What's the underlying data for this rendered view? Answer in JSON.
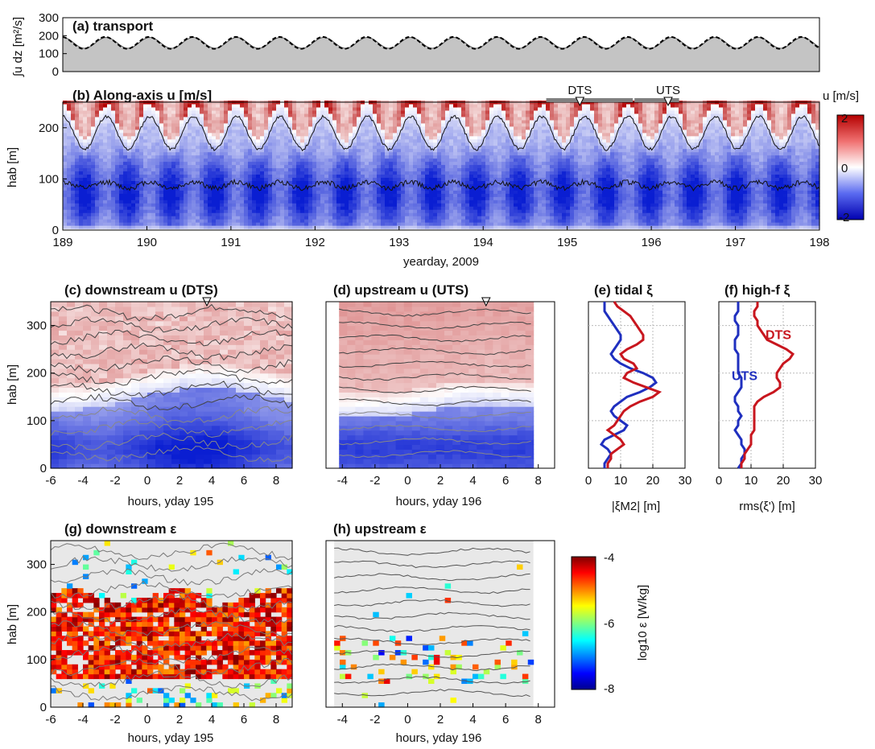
{
  "colors": {
    "blue_strong": "#0a1fd0",
    "red_strong": "#b40000",
    "white": "#ffffff",
    "transport_fill": "#c4c4c4",
    "contour": "#333333",
    "utS_line": "#1f2fbf",
    "dts_line": "#c8161e",
    "nan_gray": "#e8e8e8"
  },
  "chart_data": [
    {
      "id": "a",
      "type": "area",
      "title": "(a) transport",
      "ylabel": "∫u dz [m²/s]",
      "ylim": [
        0,
        300
      ],
      "yticks": [
        "0",
        "100",
        "200",
        "300"
      ],
      "xlim": [
        189,
        198
      ],
      "series": [
        {
          "style": "filled",
          "mean": 160,
          "amplitude": 30,
          "period_days": 0.5175
        },
        {
          "style": "dashed",
          "mean": 160,
          "amplitude": 33,
          "period_days": 0.5175
        }
      ]
    },
    {
      "id": "b",
      "type": "heatmap",
      "title": "(b) Along-axis u [m/s]",
      "xlabel": "yearday, 2009",
      "ylabel": "hab [m]",
      "xlim": [
        189,
        198
      ],
      "ylim": [
        0,
        250
      ],
      "xticks": [
        "189",
        "190",
        "191",
        "192",
        "193",
        "194",
        "195",
        "196",
        "197",
        "198"
      ],
      "yticks": [
        "0",
        "100",
        "200"
      ],
      "colorbar": {
        "label": "u [m/s]",
        "ticks": [
          "2",
          "0",
          "-2"
        ],
        "range": [
          -2,
          2
        ]
      },
      "markers": [
        {
          "label": "DTS",
          "start": 194.75,
          "end": 195.78,
          "center": 195.15
        },
        {
          "label": "UTS",
          "start": 195.8,
          "end": 196.33,
          "center": 196.2
        }
      ],
      "contours": [
        {
          "mean": 190,
          "amplitude": 32
        },
        {
          "mean": 88,
          "amplitude": 6
        }
      ]
    },
    {
      "id": "c",
      "type": "heatmap",
      "title": "(c) downstream u (DTS)",
      "xlabel": "hours, yday 195",
      "ylabel": "hab [m]",
      "xlim": [
        -6,
        9
      ],
      "ylim": [
        0,
        350
      ],
      "xticks": [
        "-6",
        "-4",
        "-2",
        "0",
        "2",
        "4",
        "6",
        "8"
      ],
      "yticks": [
        "0",
        "100",
        "200",
        "300"
      ],
      "marker_hour": 3.7
    },
    {
      "id": "d",
      "type": "heatmap",
      "title": "(d) upstream u (UTS)",
      "xlabel": "hours, yday 196",
      "xlim": [
        -5,
        9
      ],
      "ylim": [
        0,
        350
      ],
      "xticks": [
        "-4",
        "-2",
        "0",
        "2",
        "4",
        "6",
        "8"
      ],
      "data_range_hours": [
        -4.2,
        7.7
      ],
      "marker_hour": 4.8
    },
    {
      "id": "e",
      "type": "line",
      "title": "(e) tidal ξ",
      "xlabel": "|ξM2| [m]",
      "xlim": [
        0,
        30
      ],
      "ylim": [
        0,
        350
      ],
      "xticks": [
        "0",
        "10",
        "20",
        "30"
      ],
      "series": [
        {
          "name": "UTS",
          "x": [
            5,
            5,
            5,
            6,
            7,
            8,
            9,
            10,
            10,
            9,
            8,
            7,
            8,
            10,
            13,
            17,
            20,
            21,
            19,
            16,
            12,
            10,
            8,
            7,
            8,
            10,
            12,
            11,
            8,
            5,
            4,
            6,
            7,
            6,
            5,
            5
          ],
          "y": [
            350,
            340,
            330,
            320,
            310,
            300,
            290,
            280,
            270,
            260,
            250,
            240,
            230,
            220,
            210,
            200,
            190,
            180,
            170,
            160,
            150,
            140,
            130,
            120,
            110,
            100,
            90,
            80,
            70,
            60,
            50,
            40,
            30,
            20,
            10,
            0
          ]
        },
        {
          "name": "DTS",
          "x": [
            8,
            9,
            11,
            13,
            14,
            15,
            16,
            17,
            17,
            15,
            12,
            10,
            11,
            14,
            15,
            12,
            11,
            14,
            18,
            22,
            20,
            16,
            13,
            11,
            10,
            9,
            8,
            6,
            8,
            10,
            11,
            9,
            7,
            7,
            6,
            6
          ],
          "y": [
            350,
            340,
            330,
            320,
            310,
            300,
            290,
            280,
            270,
            260,
            250,
            240,
            230,
            220,
            210,
            200,
            190,
            180,
            170,
            160,
            150,
            140,
            130,
            120,
            110,
            100,
            90,
            80,
            70,
            60,
            50,
            40,
            30,
            20,
            10,
            0
          ]
        }
      ]
    },
    {
      "id": "f",
      "type": "line",
      "title": "(f) high-f ξ",
      "xlabel": "rms(ξ') [m]",
      "xlim": [
        0,
        30
      ],
      "ylim": [
        0,
        350
      ],
      "xticks": [
        "0",
        "10",
        "20",
        "30"
      ],
      "series": [
        {
          "name": "UTS",
          "x": [
            6,
            6,
            6,
            5,
            5,
            6,
            6,
            6,
            5,
            5,
            5,
            6,
            6,
            6,
            6,
            6,
            7,
            7,
            7,
            6,
            5,
            5,
            6,
            6,
            7,
            6,
            6,
            5,
            6,
            7,
            7,
            8,
            8,
            7,
            7,
            6
          ],
          "y": [
            350,
            340,
            330,
            320,
            310,
            300,
            290,
            280,
            270,
            260,
            250,
            240,
            230,
            220,
            210,
            200,
            190,
            180,
            170,
            160,
            150,
            140,
            130,
            120,
            110,
            100,
            90,
            80,
            70,
            60,
            50,
            40,
            30,
            20,
            10,
            0
          ]
        },
        {
          "name": "DTS",
          "x": [
            12,
            12,
            11,
            11,
            12,
            12,
            13,
            14,
            15,
            18,
            21,
            23,
            22,
            20,
            19,
            18,
            18,
            19,
            19,
            17,
            14,
            12,
            11,
            11,
            11,
            11,
            11,
            11,
            10,
            10,
            10,
            9,
            8,
            8,
            7,
            7
          ],
          "y": [
            350,
            340,
            330,
            320,
            310,
            300,
            290,
            280,
            270,
            260,
            250,
            240,
            230,
            220,
            210,
            200,
            190,
            180,
            170,
            160,
            150,
            140,
            130,
            120,
            110,
            100,
            90,
            80,
            70,
            60,
            50,
            40,
            30,
            20,
            10,
            0
          ]
        }
      ]
    },
    {
      "id": "g",
      "type": "heatmap",
      "title": "(g) downstream ε",
      "xlabel": "hours, yday 195",
      "ylabel": "hab [m]",
      "xlim": [
        -6,
        9
      ],
      "ylim": [
        0,
        350
      ],
      "xticks": [
        "-6",
        "-4",
        "-2",
        "0",
        "2",
        "4",
        "6",
        "8"
      ],
      "yticks": [
        "0",
        "100",
        "200",
        "300"
      ]
    },
    {
      "id": "h",
      "type": "heatmap",
      "title": "(h) upstream ε",
      "xlabel": "hours, yday 196",
      "xlim": [
        -5,
        9
      ],
      "ylim": [
        0,
        350
      ],
      "xticks": [
        "-4",
        "-2",
        "0",
        "2",
        "4",
        "6",
        "8"
      ],
      "data_range_hours": [
        -4.5,
        7.7
      ],
      "colorbar": {
        "label": "log10 ε [W/kg]",
        "ticks": [
          "-4",
          "-6",
          "-8"
        ],
        "range": [
          -8,
          -4
        ]
      }
    }
  ]
}
